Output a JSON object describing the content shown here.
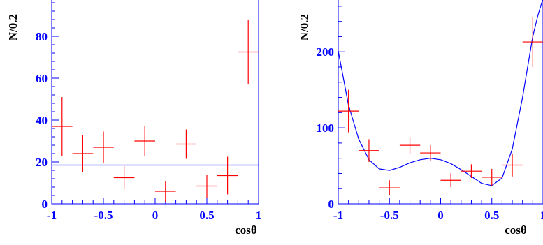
{
  "colors": {
    "axis": "#0000ff",
    "fit": "#0000ff",
    "data": "#ff0000",
    "text": "#000000"
  },
  "chart_data": [
    {
      "type": "scatter",
      "xlabel": "cosθ",
      "ylabel": "N/0.2",
      "xlim": [
        -1,
        1
      ],
      "ylim": [
        0,
        98
      ],
      "x_ticks": [
        -1,
        -0.5,
        0,
        0.5,
        1
      ],
      "x_tick_labels": [
        "-1",
        "-0.5",
        "0",
        "0.5",
        "1"
      ],
      "y_ticks": [
        0,
        20,
        40,
        60,
        80
      ],
      "y_tick_labels": [
        "0",
        "20",
        "40",
        "60",
        "80"
      ],
      "x_error": 0.1,
      "x": [
        -0.9,
        -0.7,
        -0.5,
        -0.3,
        -0.1,
        0.1,
        0.3,
        0.5,
        0.7,
        0.9
      ],
      "y": [
        37,
        24,
        27,
        12.5,
        30,
        6,
        28.5,
        8.5,
        13.5,
        72.5
      ],
      "y_err": [
        14,
        9,
        7.5,
        5.5,
        7,
        5,
        7,
        5.5,
        9,
        15.5
      ],
      "fit": {
        "type": "constant",
        "value": 18.5
      }
    },
    {
      "type": "scatter",
      "xlabel": "cosθ",
      "ylabel": "N/0.2",
      "xlim": [
        -1,
        1
      ],
      "ylim": [
        0,
        270
      ],
      "x_ticks": [
        -1,
        -0.5,
        0,
        0.5,
        1
      ],
      "x_tick_labels": [
        "-1",
        "-0.5",
        "0",
        "0.5",
        "1"
      ],
      "y_ticks": [
        0,
        100,
        200
      ],
      "y_tick_labels": [
        "0",
        "100",
        "200"
      ],
      "x_error": 0.1,
      "x": [
        -0.9,
        -0.7,
        -0.5,
        -0.3,
        -0.1,
        0.1,
        0.3,
        0.5,
        0.7,
        0.9
      ],
      "y": [
        122,
        70,
        21,
        77,
        67,
        31,
        43,
        35,
        51,
        213
      ],
      "y_err": [
        28,
        15,
        10,
        11,
        10,
        9,
        9,
        11,
        15,
        33
      ],
      "fit": {
        "type": "polynomial",
        "x": [
          -1,
          -0.9,
          -0.8,
          -0.7,
          -0.6,
          -0.5,
          -0.4,
          -0.3,
          -0.2,
          -0.1,
          0,
          0.1,
          0.2,
          0.3,
          0.4,
          0.5,
          0.6,
          0.7,
          0.8,
          0.9,
          0.95,
          1
        ],
        "y": [
          201,
          130,
          85,
          58,
          46,
          44,
          48,
          54,
          58,
          60,
          58,
          53,
          45,
          36,
          27,
          24,
          34,
          72,
          140,
          220,
          248,
          270
        ]
      }
    }
  ]
}
